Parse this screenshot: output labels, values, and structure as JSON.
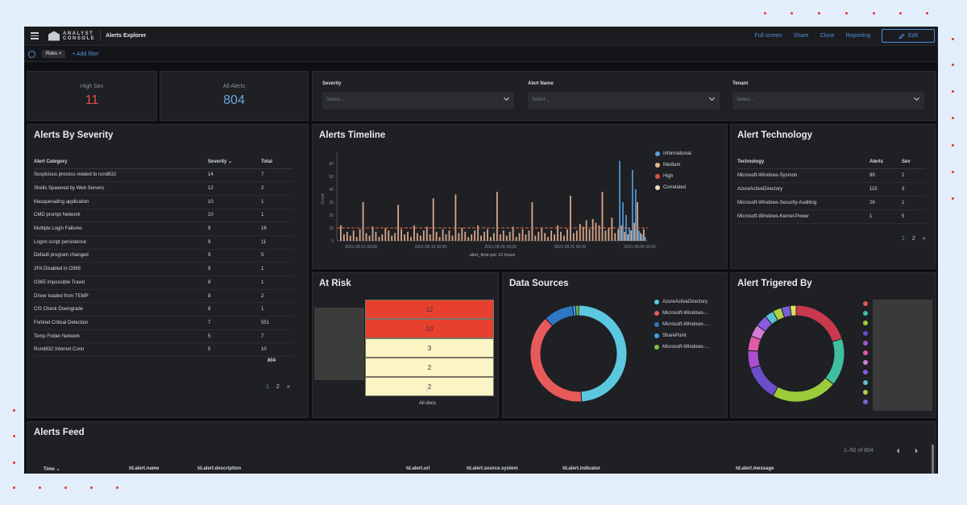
{
  "app": {
    "brand_line1": "ANALYST",
    "brand_line2": "CONSOLE",
    "title": "Alerts Explorer",
    "actions": [
      "Full screen",
      "Share",
      "Clone",
      "Reporting"
    ],
    "edit_label": "Edit"
  },
  "filters": {
    "pill_label": "Rdes",
    "add_filter": "+ Add filter"
  },
  "metrics": {
    "high_sev": {
      "label": "High Sev",
      "value": "11",
      "color": "#e0524a"
    },
    "all_alerts": {
      "label": "All Alerts",
      "value": "804",
      "color": "#6aa6dd"
    }
  },
  "selects": [
    {
      "label": "Severity",
      "placeholder": "Select..."
    },
    {
      "label": "Alert Name",
      "placeholder": "Select..."
    },
    {
      "label": "Tenant",
      "placeholder": "Select..."
    }
  ],
  "alerts_by_severity": {
    "title": "Alerts By Severity",
    "headers": [
      "Alert Category",
      "Severity ⌄",
      "Total"
    ],
    "rows": [
      [
        "Suspicious process related to rund832",
        "14",
        "7"
      ],
      [
        "Shells Spawned by Web Servers",
        "12",
        "2"
      ],
      [
        "Masquerading application",
        "10",
        "1"
      ],
      [
        "CMD prompt Network",
        "10",
        "1"
      ],
      [
        "Multiple Login Failures",
        "9",
        "16"
      ],
      [
        "Logon script persistence",
        "9",
        "11"
      ],
      [
        "Default program changed",
        "9",
        "5"
      ],
      [
        "2FA Disabled in O365",
        "9",
        "1"
      ],
      [
        "O365 Impossible Travel",
        "8",
        "1"
      ],
      [
        "Driver loaded from TEMP",
        "8",
        "2"
      ],
      [
        "CIS Check Downgrade",
        "8",
        "1"
      ],
      [
        "Fortinet Critical Detection",
        "7",
        "551"
      ],
      [
        "Temp Folder Network",
        "5",
        "7"
      ],
      [
        "Rund832 Internet Conn",
        "5",
        "10"
      ]
    ],
    "total": "804",
    "pages": [
      "1",
      "2",
      "»"
    ]
  },
  "alerts_timeline": {
    "title": "Alerts Timeline",
    "legend": [
      {
        "name": "Informational",
        "color": "#5aa0d8"
      },
      {
        "name": "Medium",
        "color": "#e9b98f"
      },
      {
        "name": "High",
        "color": "#e0524a"
      },
      {
        "name": "Correlated",
        "color": "#f2dcc0"
      }
    ],
    "y_label": "Count",
    "y_ticks": [
      "0",
      "10",
      "20",
      "30",
      "40",
      "50",
      "60"
    ],
    "x_ticks": [
      "2021-08-12 00:00",
      "2021-08-19 00:00",
      "2021-08-26 00:00",
      "2021-08-31 00:00",
      "2021-09-05 00:00"
    ],
    "x_label": "alert_time per 12 hours"
  },
  "chart_data": {
    "type": "bar",
    "ylabel": "Count",
    "xlabel": "alert_time per 12 hours",
    "ylim": [
      0,
      65
    ],
    "series": [
      {
        "name": "Medium",
        "values": [
          12,
          5,
          7,
          4,
          8,
          3,
          9,
          30,
          6,
          4,
          11,
          7,
          3,
          5,
          10,
          8,
          4,
          6,
          28,
          9,
          5,
          7,
          3,
          12,
          6,
          4,
          8,
          11,
          5,
          33,
          7,
          3,
          9,
          5,
          8,
          4,
          36,
          6,
          10,
          7,
          3,
          5,
          8,
          12,
          4,
          7,
          9,
          3,
          6,
          38,
          5,
          8,
          4,
          7,
          11,
          3,
          6,
          9,
          5,
          8,
          30,
          4,
          7,
          10,
          6,
          3,
          8,
          5,
          12,
          7,
          4,
          9,
          35,
          6,
          8,
          13,
          11,
          16,
          9,
          17,
          14,
          12,
          38,
          8,
          10,
          18,
          6,
          9,
          12,
          7,
          5,
          8,
          14,
          30,
          6,
          9
        ]
      },
      {
        "name": "Informational",
        "values": [
          0,
          0,
          0,
          0,
          0,
          0,
          0,
          0,
          0,
          0,
          0,
          0,
          0,
          0,
          0,
          0,
          0,
          0,
          0,
          0,
          0,
          0,
          0,
          0,
          0,
          0,
          0,
          0,
          0,
          0,
          0,
          0,
          0,
          0,
          0,
          0,
          0,
          0,
          0,
          0,
          0,
          0,
          0,
          0,
          0,
          0,
          0,
          0,
          0,
          0,
          0,
          0,
          0,
          0,
          0,
          0,
          0,
          0,
          0,
          0,
          0,
          0,
          0,
          0,
          0,
          0,
          0,
          0,
          0,
          0,
          0,
          0,
          0,
          0,
          0,
          0,
          0,
          0,
          0,
          0,
          0,
          0,
          0,
          0,
          0,
          0,
          0,
          62,
          30,
          20,
          10,
          55,
          40,
          8,
          5,
          3
        ]
      }
    ],
    "threshold": 10
  },
  "alert_technology": {
    "title": "Alert Technology",
    "headers": [
      "Technology",
      "Alerts",
      "Sev"
    ],
    "rows": [
      [
        "Microsoft-Windows-Sysmon",
        "89",
        "2"
      ],
      [
        "AzureActiveDirectory",
        "115",
        "3"
      ],
      [
        "Microsoft-Windows-Security-Auditing",
        "26",
        "1"
      ],
      [
        "Microsoft-Windows-Kernel-Power",
        "1",
        "5"
      ]
    ],
    "pages": [
      "1",
      "2",
      "»"
    ]
  },
  "at_risk": {
    "title": "At Risk",
    "cells": [
      {
        "value": "12",
        "color": "#e8402e"
      },
      {
        "value": "10",
        "color": "#e8402e"
      },
      {
        "value": "3",
        "color": "#fbf4c5"
      },
      {
        "value": "2",
        "color": "#fbf4c5"
      },
      {
        "value": "2",
        "color": "#fbf4c5"
      }
    ],
    "x_tick": "1",
    "x_label": "All docs"
  },
  "data_sources": {
    "title": "Data Sources",
    "legend": [
      {
        "name": "AzureActiveDirectory",
        "color": "#5bc8e0"
      },
      {
        "name": "Microsoft-Windows-...",
        "color": "#e85a5a"
      },
      {
        "name": "Microsoft-Windows-...",
        "color": "#2f78c4"
      },
      {
        "name": "SharePoint",
        "color": "#3fa0e8"
      },
      {
        "name": "Microsoft-Windows-...",
        "color": "#7bc043"
      }
    ],
    "slices": [
      0.49,
      0.39,
      0.1,
      0.01,
      0.01
    ]
  },
  "alert_triggered_by": {
    "title": "Alert Trigered By",
    "slices": [
      {
        "v": 0.2,
        "color": "#c8384e"
      },
      {
        "v": 0.16,
        "color": "#3fbf9f"
      },
      {
        "v": 0.22,
        "color": "#9ccc3c"
      },
      {
        "v": 0.12,
        "color": "#6a4fc8"
      },
      {
        "v": 0.06,
        "color": "#a84fd0"
      },
      {
        "v": 0.05,
        "color": "#e05aa8"
      },
      {
        "v": 0.04,
        "color": "#d67ad8"
      },
      {
        "v": 0.04,
        "color": "#8a5ce0"
      },
      {
        "v": 0.03,
        "color": "#5cc0d0"
      },
      {
        "v": 0.03,
        "color": "#b0d040"
      },
      {
        "v": 0.03,
        "color": "#7a5fd8"
      },
      {
        "v": 0.02,
        "color": "#e0e060"
      }
    ],
    "legend_colors": [
      "#e05555",
      "#3fbf9f",
      "#9ccc3c",
      "#6a4fc8",
      "#a84fd0",
      "#e05aa8",
      "#d67ad8",
      "#8a5ce0",
      "#5cc0d0",
      "#b0d040",
      "#7a5fd8"
    ]
  },
  "alerts_feed": {
    "title": "Alerts Feed",
    "range": "1–50 of 804",
    "headers": [
      "Time ⌄",
      "td.alert.name",
      "td.alert.description",
      "td.alert.url",
      "td.alert.source.system",
      "td.alert.indicator",
      "td.alert.message"
    ]
  }
}
